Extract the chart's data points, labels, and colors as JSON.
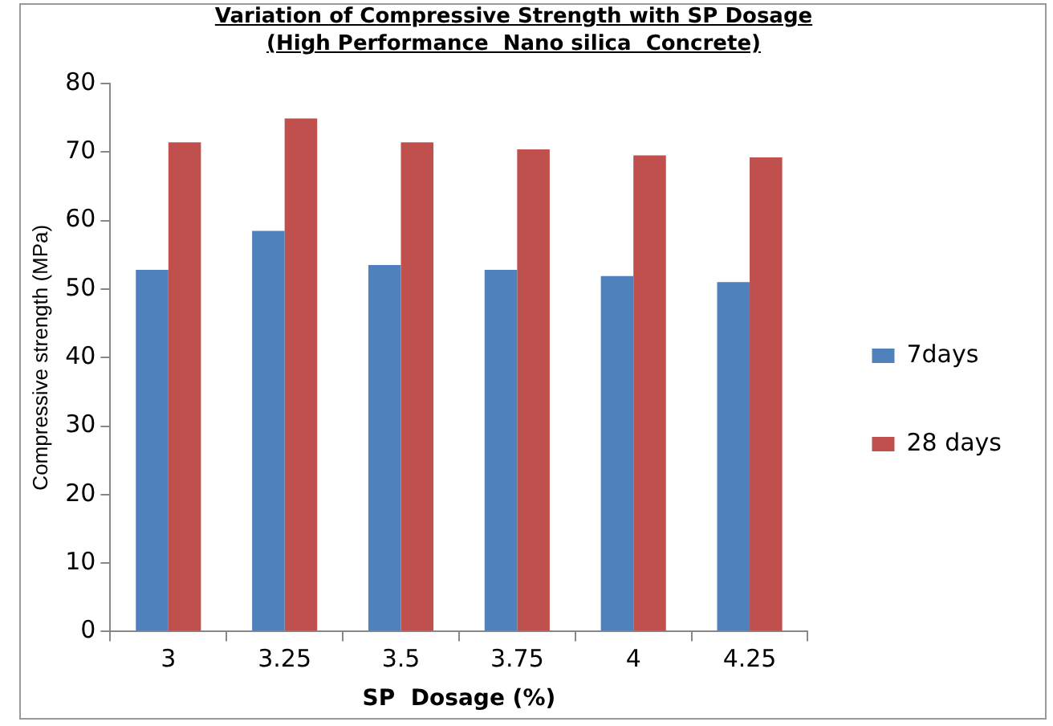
{
  "chart_data": {
    "type": "bar",
    "title": "Variation of Compressive Strength with SP Dosage\n(High Performance  Nano silica  Concrete)",
    "xlabel": "SP  Dosage (%)",
    "ylabel": "Compressive strength (MPa)",
    "categories": [
      "3",
      "3.25",
      "3.5",
      "3.75",
      "4",
      "4.25"
    ],
    "series": [
      {
        "name": "7days",
        "color": "#4f81bd",
        "values": [
          52.8,
          58.5,
          53.5,
          52.8,
          51.9,
          51.0
        ]
      },
      {
        "name": "28 days",
        "color": "#c0504d",
        "values": [
          71.4,
          74.9,
          71.4,
          70.4,
          69.5,
          69.2
        ]
      }
    ],
    "ylim": [
      0,
      80
    ],
    "yticks": [
      0,
      10,
      20,
      30,
      40,
      50,
      60,
      70,
      80
    ],
    "grid": false,
    "legend": "right"
  }
}
